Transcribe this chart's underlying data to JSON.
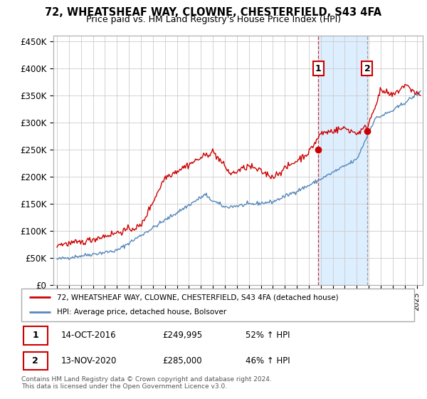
{
  "title": "72, WHEATSHEAF WAY, CLOWNE, CHESTERFIELD, S43 4FA",
  "subtitle": "Price paid vs. HM Land Registry's House Price Index (HPI)",
  "ylim": [
    0,
    460000
  ],
  "yticks": [
    0,
    50000,
    100000,
    150000,
    200000,
    250000,
    300000,
    350000,
    400000,
    450000
  ],
  "ytick_labels": [
    "£0",
    "£50K",
    "£100K",
    "£150K",
    "£200K",
    "£250K",
    "£300K",
    "£350K",
    "£400K",
    "£450K"
  ],
  "red_line_color": "#cc0000",
  "blue_line_color": "#5588bb",
  "shade_color": "#ddeeff",
  "sale1_date": 2016.79,
  "sale1_price": 249995,
  "sale1_label": "1",
  "sale2_date": 2020.87,
  "sale2_price": 285000,
  "sale2_label": "2",
  "legend_red_label": "72, WHEATSHEAF WAY, CLOWNE, CHESTERFIELD, S43 4FA (detached house)",
  "legend_blue_label": "HPI: Average price, detached house, Bolsover",
  "table_row1": [
    "1",
    "14-OCT-2016",
    "£249,995",
    "52% ↑ HPI"
  ],
  "table_row2": [
    "2",
    "13-NOV-2020",
    "£285,000",
    "46% ↑ HPI"
  ],
  "footer": "Contains HM Land Registry data © Crown copyright and database right 2024.\nThis data is licensed under the Open Government Licence v3.0.",
  "background_color": "#ffffff",
  "grid_color": "#cccccc",
  "xlim_start": 1994.7,
  "xlim_end": 2025.5
}
